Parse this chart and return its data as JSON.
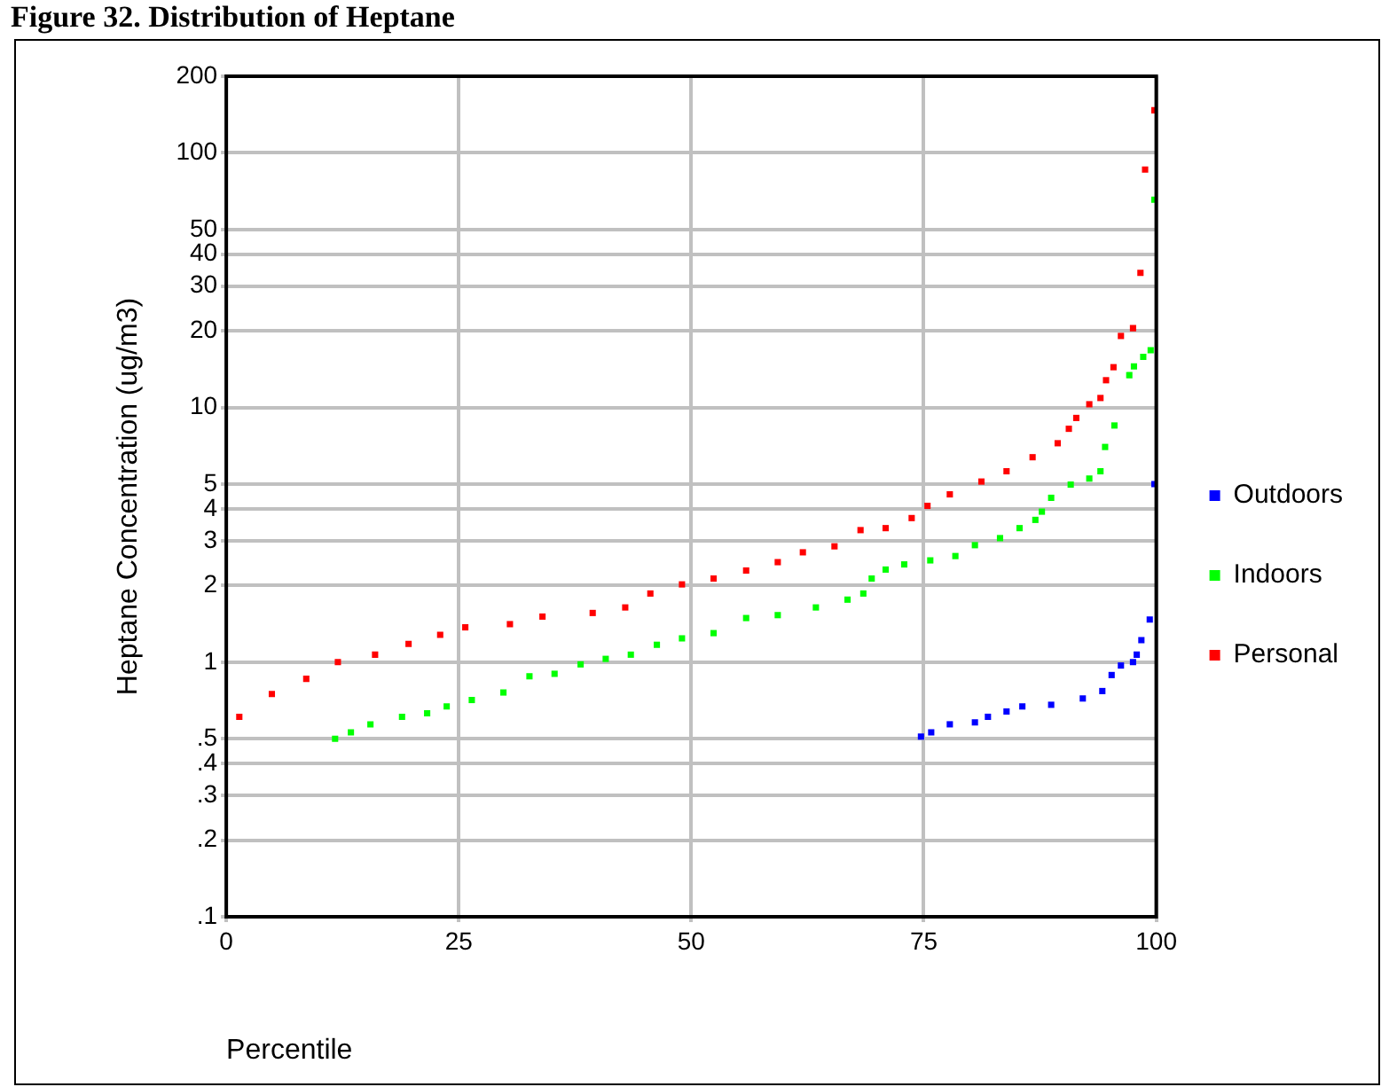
{
  "chart_data": {
    "type": "scatter",
    "title": "Figure 32. Distribution of Heptane",
    "xlabel": "Percentile",
    "ylabel": "Heptane Concentration (ug/m3)",
    "log": "y",
    "grid": true,
    "legend": "right",
    "marker": "square",
    "xlim": [
      0,
      100
    ],
    "xticks": [
      0,
      25,
      50,
      75,
      100
    ],
    "ylim": [
      0.1,
      200
    ],
    "yticks": [
      {
        "value": 0.1,
        "label": ".1"
      },
      {
        "value": 0.2,
        "label": ".2"
      },
      {
        "value": 0.3,
        "label": ".3"
      },
      {
        "value": 0.4,
        "label": ".4"
      },
      {
        "value": 0.5,
        "label": ".5"
      },
      1,
      2,
      3,
      4,
      5,
      10,
      20,
      30,
      40,
      50,
      100,
      200
    ],
    "series": [
      {
        "name": "Outdoors",
        "color": "#0000ff",
        "x": [
          74.7,
          75.8,
          77.8,
          80.5,
          81.9,
          83.9,
          85.6,
          88.7,
          92.1,
          94.2,
          95.2,
          96.2,
          97.5,
          97.9,
          98.4,
          99.3,
          99.8
        ],
        "values": [
          0.51,
          0.53,
          0.57,
          0.58,
          0.61,
          0.64,
          0.67,
          0.68,
          0.72,
          0.77,
          0.89,
          0.97,
          1.0,
          1.07,
          1.22,
          1.47,
          5.0
        ]
      },
      {
        "name": "Indoors",
        "color": "#00ff00",
        "x": [
          11.7,
          13.4,
          15.5,
          18.9,
          21.6,
          23.7,
          26.4,
          29.8,
          32.6,
          35.3,
          38.1,
          40.8,
          43.5,
          46.3,
          49,
          52.4,
          55.9,
          59.3,
          63.4,
          66.8,
          68.5,
          69.4,
          70.9,
          72.9,
          75.7,
          78.4,
          80.5,
          83.2,
          85.3,
          87,
          87.7,
          88.7,
          90.8,
          92.8,
          94,
          94.5,
          95.5,
          97.1,
          97.6,
          98.6,
          99.4,
          99.8
        ],
        "values": [
          0.5,
          0.53,
          0.57,
          0.61,
          0.63,
          0.67,
          0.71,
          0.76,
          0.88,
          0.9,
          0.98,
          1.03,
          1.07,
          1.17,
          1.24,
          1.3,
          1.49,
          1.53,
          1.64,
          1.76,
          1.86,
          2.13,
          2.31,
          2.42,
          2.51,
          2.61,
          2.88,
          3.07,
          3.36,
          3.62,
          3.9,
          4.42,
          4.98,
          5.26,
          5.62,
          7.0,
          8.5,
          13.4,
          14.5,
          15.8,
          16.8,
          65.5
        ]
      },
      {
        "name": "Personal",
        "color": "#ff0000",
        "x": [
          1.4,
          4.9,
          8.6,
          12,
          16,
          19.6,
          23,
          25.7,
          30.5,
          34,
          39.4,
          42.9,
          45.6,
          49,
          52.4,
          55.9,
          59.3,
          62,
          65.4,
          68.2,
          70.9,
          73.7,
          75.4,
          77.8,
          81.2,
          83.9,
          86.7,
          89.4,
          90.6,
          91.4,
          92.8,
          94,
          94.6,
          95.4,
          96.2,
          97.5,
          98.3,
          98.8,
          99.8
        ],
        "values": [
          0.61,
          0.75,
          0.86,
          1.0,
          1.07,
          1.18,
          1.28,
          1.37,
          1.41,
          1.51,
          1.56,
          1.64,
          1.86,
          2.02,
          2.13,
          2.29,
          2.47,
          2.7,
          2.85,
          3.3,
          3.36,
          3.68,
          4.11,
          4.56,
          5.12,
          5.62,
          6.38,
          7.24,
          8.25,
          9.1,
          10.3,
          10.9,
          12.8,
          14.4,
          19.1,
          20.5,
          33.8,
          86,
          147
        ]
      }
    ]
  }
}
